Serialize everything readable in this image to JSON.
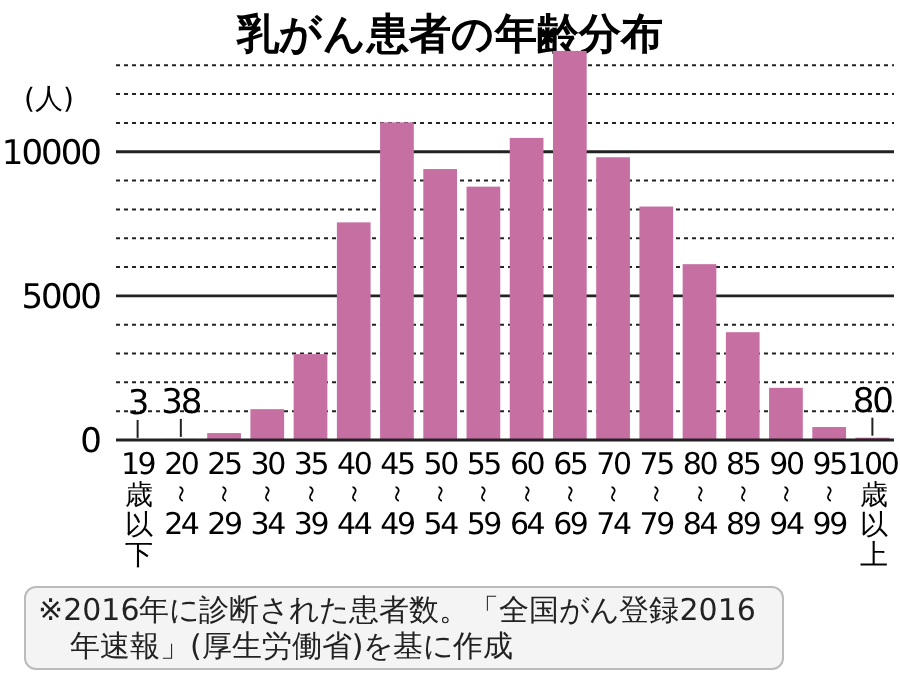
{
  "chart_data": {
    "type": "bar",
    "title": "乳がん患者の年齢分布",
    "ylabel": "(人)",
    "categories": [
      "19歳以下",
      "20～24",
      "25～29",
      "30～34",
      "35～39",
      "40～44",
      "45～49",
      "50～54",
      "55～59",
      "60～64",
      "65～69",
      "70～74",
      "75～79",
      "80～84",
      "85～89",
      "90～94",
      "95～99",
      "100歳以上"
    ],
    "values": [
      3,
      38,
      240,
      1070,
      2980,
      7550,
      11020,
      9400,
      8790,
      10480,
      13500,
      9810,
      8100,
      6100,
      3740,
      1810,
      450,
      80
    ],
    "value_labels": [
      "3",
      "38",
      null,
      null,
      null,
      null,
      null,
      null,
      null,
      null,
      null,
      null,
      null,
      null,
      null,
      null,
      null,
      "80"
    ],
    "color": "#c66fa3",
    "ylim": [
      0,
      13600
    ],
    "yticks": [
      0,
      {
        "value": 1000,
        "label": null
      },
      {
        "value": 2000,
        "label": null
      },
      {
        "value": 3000,
        "label": null
      },
      {
        "value": 4000,
        "label": null
      },
      5000,
      {
        "value": 6000,
        "label": null
      },
      {
        "value": 7000,
        "label": null
      },
      {
        "value": 8000,
        "label": null
      },
      {
        "value": 9000,
        "label": null
      },
      10000,
      {
        "value": 11000,
        "label": null
      },
      {
        "value": 12000,
        "label": null
      },
      {
        "value": 13000,
        "label": null
      }
    ],
    "grid": "y",
    "annotations": [
      "※2016年に診断された患者数。「全国がん登録2016年速報」(厚生労働省)を基に作成"
    ]
  }
}
